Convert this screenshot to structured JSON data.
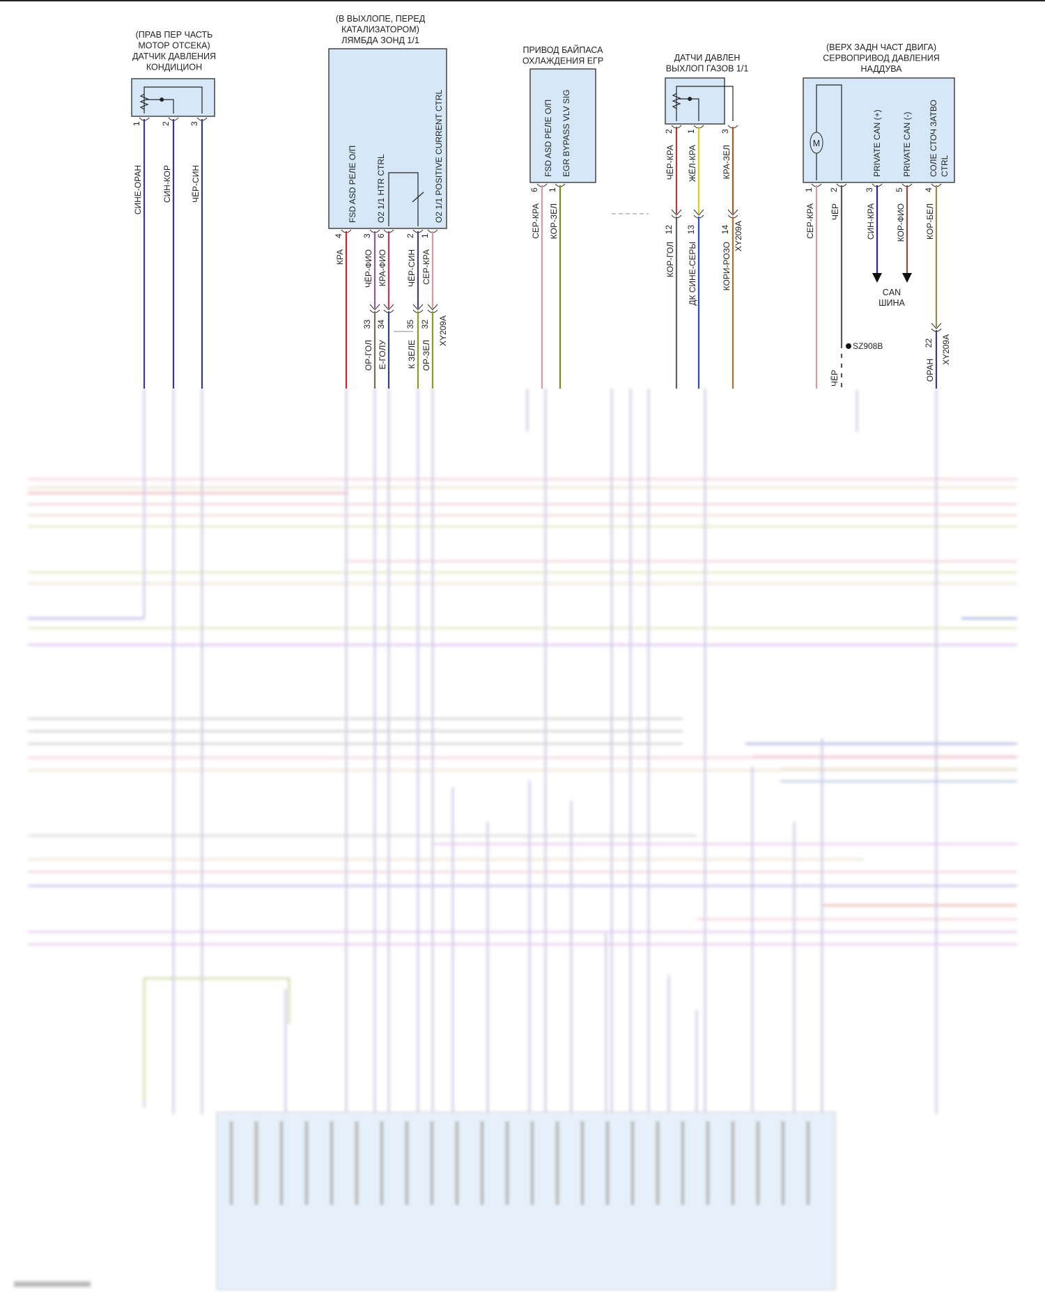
{
  "components": [
    {
      "title": [
        "(ПРАВ ПЕР ЧАСТЬ",
        "МОТОР ОТСЕКА)",
        "ДАТЧИК ДАВЛЕНИЯ",
        "КОНДИЦИОН"
      ],
      "pins": [
        {
          "num": "1",
          "wire": "СИНЕ-ОРАН",
          "color": "#4b2f8f"
        },
        {
          "num": "2",
          "wire": "СИН-КОР",
          "color": "#3b3494"
        },
        {
          "num": "3",
          "wire": "ЧЁР-СИН",
          "color": "#2f3a8a"
        }
      ]
    },
    {
      "title": [
        "(В ВЫХЛОПЕ, ПЕРЕД",
        "КАТАЛИЗАТОРОМ)",
        "ЛЯМБДА ЗОНД 1/1"
      ],
      "pin_labels": [
        "FSD ASD РЕЛЕ О/П",
        "O2 1/1 HTR CTRL",
        "O2 1/1 POSITIVE CURRENT CTRL"
      ],
      "pins": [
        {
          "num": "4",
          "wire": "КРА",
          "color": "#d4232b"
        },
        {
          "num": "3",
          "wire": "ЧЁР-ФИО",
          "color": "#8a5a9a",
          "conn_num": "33",
          "wire2": "ОР-ГОЛ",
          "color2": "#7a6a50"
        },
        {
          "num": "6",
          "wire": "КРА-ФИО",
          "color": "#c8325a",
          "conn_num": "34",
          "wire2": "Е-ГОЛУ",
          "color2": "#2b3fa0"
        },
        {
          "num": "2",
          "wire": "ЧЁР-СИН",
          "color": "#3d3f7d",
          "conn_num": "35",
          "wire2": "К ЗЕЛЕ",
          "color2": "#8a9a2a"
        },
        {
          "num": "1",
          "wire": "СЕР-КРА",
          "color": "#d89aa0",
          "conn_num": "32",
          "wire2": "ОР-ЗЕЛ",
          "color2": "#8a9a2a"
        }
      ],
      "connector": "XY209A"
    },
    {
      "title": [
        "ПРИВОД БАЙПАСА",
        "ОХЛАЖДЕНИЯ ЕГР"
      ],
      "pin_labels": [
        "FSD ASD РЕЛЕ О/П",
        "EGR BYPASS VLV SIG"
      ],
      "pins": [
        {
          "num": "6",
          "wire": "СЕР-КРА",
          "color": "#d89aa0"
        },
        {
          "num": "1",
          "wire": "КОР-ЗЕЛ",
          "color": "#7a8a20"
        }
      ]
    },
    {
      "title": [
        "ДАТЧИ ДАВЛЕН",
        "ВЫХЛОП ГАЗОВ 1/1"
      ],
      "pins": [
        {
          "num": "2",
          "wire": "ЧЁР-КРА",
          "color": "#a0403a",
          "conn_num": "12",
          "wire2": "КОР-ГОЛ",
          "color2": "#6a5a60"
        },
        {
          "num": "1",
          "wire": "ЖЁЛ-КРА",
          "color": "#e6c81a",
          "conn_num": "13",
          "wire2": "ДК СИНЕ-СЕРЫ",
          "color2": "#2b4fb0"
        },
        {
          "num": "3",
          "wire": "КРА-ЗЕЛ",
          "color": "#b8502a",
          "conn_num": "14",
          "wire2": "КОРИ-РОЗО",
          "color2": "#b0702a"
        }
      ],
      "connector": "XY209A"
    },
    {
      "title": [
        "(ВЕРХ ЗАДН ЧАСТ ДВИГА)",
        "СЕРВОПРИВОД ДАВЛЕНИЯ",
        "НАДДУВА"
      ],
      "pin_labels": [
        "PRIVATE CAN (+)",
        "PRIVATE CAN (-)",
        "СОЛЕ СТОЧ ЗАТВО",
        "CTRL"
      ],
      "motor": "M",
      "pins": [
        {
          "num": "1",
          "wire": "СЕР-КРА",
          "color": "#d89aa0"
        },
        {
          "num": "2",
          "wire": "ЧЁР",
          "color": "#555555"
        },
        {
          "num": "3",
          "wire": "СИН-КРА",
          "color": "#3a1a9a"
        },
        {
          "num": "5",
          "wire": "КОР-ФИО",
          "color": "#8a4a40"
        },
        {
          "num": "4",
          "wire": "КОР-БЕЛ",
          "color": "#9a8a40",
          "conn_num": "22",
          "wire2": "ОРАН",
          "color2": "#3a3a8a"
        }
      ],
      "can_bus": [
        "CAN",
        "ШИНА"
      ],
      "splice": "SZ908B",
      "splice_wire": "ЧЁР",
      "connector": "XY209A"
    }
  ]
}
